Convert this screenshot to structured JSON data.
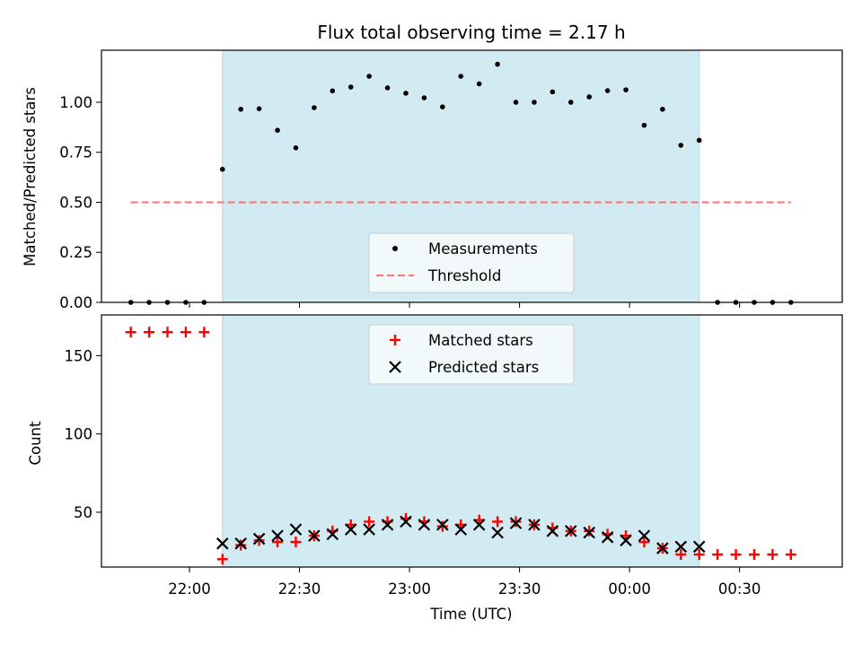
{
  "colors": {
    "band": "#add8e6",
    "threshold": "#ff7070",
    "matched": "#ff0000",
    "predicted": "#000000",
    "measurement": "#000000",
    "legend_bg": "#f7fbfd"
  },
  "chart_data": [
    {
      "type": "scatter",
      "title": "Flux total observing time = 2.17 h",
      "ylabel": "Matched/Predicted stars",
      "xlabel": "",
      "xaxis_ticks": [
        "22:00",
        "22:30",
        "23:00",
        "23:30",
        "00:00",
        "00:30"
      ],
      "x_time_range": [
        "21:36",
        "00:58"
      ],
      "ylim": [
        0,
        1.26
      ],
      "yticks": [
        0.0,
        0.25,
        0.5,
        0.75,
        1.0
      ],
      "ytick_labels": [
        "0.00",
        "0.25",
        "0.50",
        "0.75",
        "1.00"
      ],
      "shaded_interval": [
        "22:09",
        "00:19"
      ],
      "legend": {
        "placement": "lower-center",
        "entries": [
          "Measurements",
          "Threshold"
        ]
      },
      "series": [
        {
          "name": "Measurements",
          "marker": "dot",
          "x": [
            "21:44",
            "21:49",
            "21:54",
            "21:59",
            "22:04",
            "22:09",
            "22:14",
            "22:19",
            "22:24",
            "22:29",
            "22:34",
            "22:39",
            "22:44",
            "22:49",
            "22:54",
            "22:59",
            "23:04",
            "23:09",
            "23:14",
            "23:19",
            "23:24",
            "23:29",
            "23:34",
            "23:39",
            "23:44",
            "23:49",
            "23:54",
            "23:59",
            "00:04",
            "00:09",
            "00:14",
            "00:19",
            "00:24",
            "00:29",
            "00:34",
            "00:39",
            "00:44"
          ],
          "y": [
            0,
            0,
            0,
            0,
            0,
            0.665,
            0.965,
            0.968,
            0.86,
            0.772,
            0.973,
            1.057,
            1.076,
            1.13,
            1.072,
            1.045,
            1.022,
            0.977,
            1.13,
            1.092,
            1.19,
            1.0,
            1.0,
            1.052,
            1.0,
            1.027,
            1.058,
            1.062,
            0.885,
            0.965,
            0.785,
            0.81,
            0,
            0,
            0,
            0,
            0
          ]
        },
        {
          "name": "Threshold",
          "marker": "dashed-line",
          "x": [
            "21:44",
            "00:44"
          ],
          "y": [
            0.5,
            0.5
          ]
        }
      ]
    },
    {
      "type": "scatter",
      "title": "",
      "ylabel": "Count",
      "xlabel": "Time (UTC)",
      "xaxis_ticks": [
        "22:00",
        "22:30",
        "23:00",
        "23:30",
        "00:00",
        "00:30"
      ],
      "x_time_range": [
        "21:36",
        "00:58"
      ],
      "ylim": [
        15,
        176
      ],
      "yticks": [
        50,
        100,
        150
      ],
      "ytick_labels": [
        "50",
        "100",
        "150"
      ],
      "shaded_interval": [
        "22:09",
        "00:19"
      ],
      "legend": {
        "placement": "upper-center",
        "entries": [
          "Matched stars",
          "Predicted stars"
        ]
      },
      "series": [
        {
          "name": "Matched stars",
          "marker": "plus",
          "x": [
            "21:44",
            "21:49",
            "21:54",
            "21:59",
            "22:04",
            "22:09",
            "22:14",
            "22:19",
            "22:24",
            "22:29",
            "22:34",
            "22:39",
            "22:44",
            "22:49",
            "22:54",
            "22:59",
            "23:04",
            "23:09",
            "23:14",
            "23:19",
            "23:24",
            "23:29",
            "23:34",
            "23:39",
            "23:44",
            "23:49",
            "23:54",
            "23:59",
            "00:04",
            "00:09",
            "00:14",
            "00:19",
            "00:24",
            "00:29",
            "00:34",
            "00:39",
            "00:44"
          ],
          "y": [
            165,
            165,
            165,
            165,
            165,
            20,
            29,
            32,
            31,
            31,
            35,
            38,
            42,
            44,
            44,
            46,
            44,
            41,
            42,
            45,
            44,
            44,
            42,
            40,
            38,
            38,
            36,
            35,
            31,
            27,
            23,
            23,
            23,
            23,
            23,
            23,
            23
          ]
        },
        {
          "name": "Predicted stars",
          "marker": "x",
          "x": [
            "22:09",
            "22:14",
            "22:19",
            "22:24",
            "22:29",
            "22:34",
            "22:39",
            "22:44",
            "22:49",
            "22:54",
            "22:59",
            "23:04",
            "23:09",
            "23:14",
            "23:19",
            "23:24",
            "23:29",
            "23:34",
            "23:39",
            "23:44",
            "23:49",
            "23:54",
            "23:59",
            "00:04",
            "00:09",
            "00:14",
            "00:19"
          ],
          "y": [
            30,
            30,
            33,
            35,
            39,
            35,
            36,
            39,
            39,
            42,
            44,
            42,
            42,
            39,
            42,
            37,
            43,
            42,
            38,
            38,
            37,
            34,
            32,
            35,
            27,
            28,
            28
          ]
        }
      ]
    }
  ]
}
